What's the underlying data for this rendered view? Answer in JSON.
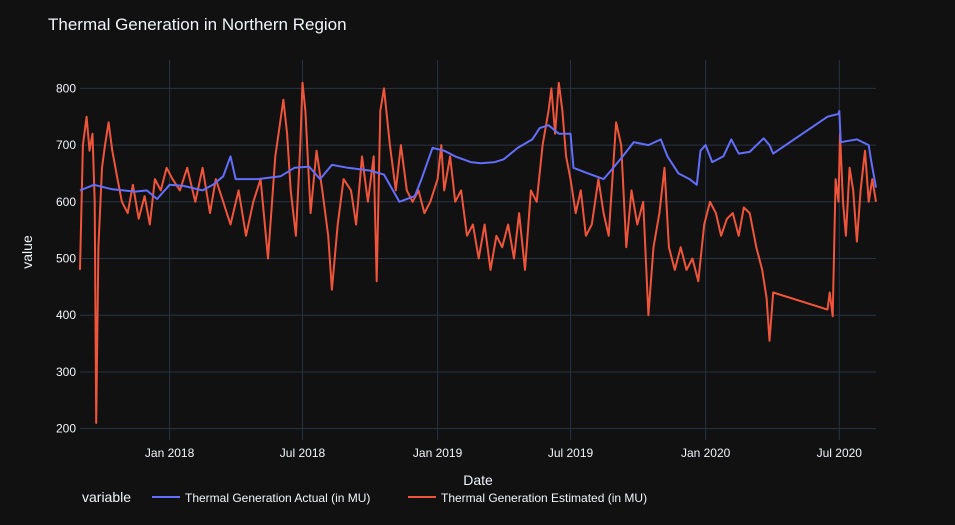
{
  "chart_data": {
    "type": "line",
    "title": "Thermal Generation in Northern Region",
    "xlabel": "Date",
    "ylabel": "value",
    "x_range": [
      "2017-09-01",
      "2020-08-20"
    ],
    "ylim": [
      180,
      850
    ],
    "x_ticks": [
      {
        "date": "2018-01-01",
        "label": "Jan 2018"
      },
      {
        "date": "2018-07-01",
        "label": "Jul 2018"
      },
      {
        "date": "2019-01-01",
        "label": "Jan 2019"
      },
      {
        "date": "2019-07-01",
        "label": "Jul 2019"
      },
      {
        "date": "2020-01-01",
        "label": "Jan 2020"
      },
      {
        "date": "2020-07-01",
        "label": "Jul 2020"
      }
    ],
    "y_ticks": [
      200,
      300,
      400,
      500,
      600,
      700,
      800
    ],
    "grid": true,
    "legend": {
      "title": "variable",
      "placement": "bottom"
    },
    "colors": {
      "actual": "#636efa",
      "estimated": "#ef553b",
      "background": "#111111",
      "grid": "#283442",
      "text": "#f2f5fa"
    },
    "series": [
      {
        "name": "Thermal Generation Actual (in MU)",
        "color": "#636efa",
        "points": [
          [
            "2017-09-01",
            620
          ],
          [
            "2017-09-20",
            630
          ],
          [
            "2017-10-15",
            622
          ],
          [
            "2017-11-15",
            618
          ],
          [
            "2017-12-01",
            620
          ],
          [
            "2017-12-15",
            605
          ],
          [
            "2018-01-01",
            630
          ],
          [
            "2018-01-20",
            628
          ],
          [
            "2018-02-15",
            620
          ],
          [
            "2018-03-01",
            630
          ],
          [
            "2018-03-15",
            645
          ],
          [
            "2018-03-25",
            680
          ],
          [
            "2018-04-01",
            640
          ],
          [
            "2018-05-01",
            640
          ],
          [
            "2018-06-01",
            645
          ],
          [
            "2018-06-20",
            660
          ],
          [
            "2018-07-10",
            662
          ],
          [
            "2018-07-25",
            640
          ],
          [
            "2018-08-10",
            665
          ],
          [
            "2018-09-01",
            660
          ],
          [
            "2018-10-01",
            655
          ],
          [
            "2018-10-20",
            648
          ],
          [
            "2018-11-10",
            600
          ],
          [
            "2018-12-01",
            610
          ],
          [
            "2018-12-10",
            640
          ],
          [
            "2018-12-25",
            695
          ],
          [
            "2019-01-10",
            690
          ],
          [
            "2019-01-25",
            680
          ],
          [
            "2019-02-15",
            670
          ],
          [
            "2019-03-01",
            668
          ],
          [
            "2019-03-20",
            670
          ],
          [
            "2019-04-01",
            675
          ],
          [
            "2019-04-20",
            695
          ],
          [
            "2019-05-10",
            710
          ],
          [
            "2019-05-20",
            730
          ],
          [
            "2019-06-01",
            735
          ],
          [
            "2019-06-15",
            720
          ],
          [
            "2019-07-01",
            720
          ],
          [
            "2019-07-05",
            660
          ],
          [
            "2019-07-25",
            650
          ],
          [
            "2019-08-15",
            640
          ],
          [
            "2019-08-25",
            655
          ],
          [
            "2019-09-10",
            680
          ],
          [
            "2019-09-25",
            705
          ],
          [
            "2019-10-15",
            700
          ],
          [
            "2019-11-01",
            710
          ],
          [
            "2019-11-10",
            680
          ],
          [
            "2019-11-25",
            650
          ],
          [
            "2019-12-10",
            640
          ],
          [
            "2019-12-20",
            630
          ],
          [
            "2019-12-25",
            690
          ],
          [
            "2020-01-01",
            700
          ],
          [
            "2020-01-10",
            670
          ],
          [
            "2020-01-25",
            680
          ],
          [
            "2020-02-05",
            710
          ],
          [
            "2020-02-15",
            685
          ],
          [
            "2020-03-01",
            688
          ],
          [
            "2020-03-20",
            712
          ],
          [
            "2020-03-28",
            700
          ],
          [
            "2020-04-02",
            685
          ],
          [
            "2020-06-15",
            750
          ],
          [
            "2020-06-30",
            755
          ],
          [
            "2020-07-01",
            760
          ],
          [
            "2020-07-03",
            705
          ],
          [
            "2020-07-25",
            710
          ],
          [
            "2020-08-10",
            700
          ],
          [
            "2020-08-13",
            675
          ],
          [
            "2020-08-20",
            625
          ]
        ]
      },
      {
        "name": "Thermal Generation Estimated (in MU)",
        "color": "#ef553b",
        "points": [
          [
            "2017-09-01",
            480
          ],
          [
            "2017-09-05",
            700
          ],
          [
            "2017-09-10",
            750
          ],
          [
            "2017-09-14",
            690
          ],
          [
            "2017-09-18",
            720
          ],
          [
            "2017-09-21",
            600
          ],
          [
            "2017-09-23",
            210
          ],
          [
            "2017-09-26",
            520
          ],
          [
            "2017-10-01",
            660
          ],
          [
            "2017-10-05",
            700
          ],
          [
            "2017-10-10",
            740
          ],
          [
            "2017-10-15",
            690
          ],
          [
            "2017-10-22",
            640
          ],
          [
            "2017-10-28",
            600
          ],
          [
            "2017-11-05",
            580
          ],
          [
            "2017-11-12",
            630
          ],
          [
            "2017-11-20",
            570
          ],
          [
            "2017-11-28",
            610
          ],
          [
            "2017-12-05",
            560
          ],
          [
            "2017-12-12",
            640
          ],
          [
            "2017-12-20",
            620
          ],
          [
            "2017-12-28",
            660
          ],
          [
            "2018-01-05",
            640
          ],
          [
            "2018-01-15",
            620
          ],
          [
            "2018-01-25",
            660
          ],
          [
            "2018-02-05",
            600
          ],
          [
            "2018-02-15",
            660
          ],
          [
            "2018-02-25",
            580
          ],
          [
            "2018-03-05",
            640
          ],
          [
            "2018-03-15",
            600
          ],
          [
            "2018-03-25",
            560
          ],
          [
            "2018-04-05",
            620
          ],
          [
            "2018-04-15",
            540
          ],
          [
            "2018-04-25",
            600
          ],
          [
            "2018-05-05",
            640
          ],
          [
            "2018-05-15",
            500
          ],
          [
            "2018-05-25",
            680
          ],
          [
            "2018-06-05",
            780
          ],
          [
            "2018-06-10",
            720
          ],
          [
            "2018-06-15",
            620
          ],
          [
            "2018-06-22",
            540
          ],
          [
            "2018-06-28",
            700
          ],
          [
            "2018-07-01",
            810
          ],
          [
            "2018-07-05",
            760
          ],
          [
            "2018-07-12",
            580
          ],
          [
            "2018-07-20",
            690
          ],
          [
            "2018-07-28",
            620
          ],
          [
            "2018-08-05",
            540
          ],
          [
            "2018-08-10",
            445
          ],
          [
            "2018-08-18",
            560
          ],
          [
            "2018-08-26",
            640
          ],
          [
            "2018-09-05",
            620
          ],
          [
            "2018-09-12",
            560
          ],
          [
            "2018-09-20",
            680
          ],
          [
            "2018-09-28",
            600
          ],
          [
            "2018-10-06",
            680
          ],
          [
            "2018-10-10",
            460
          ],
          [
            "2018-10-15",
            760
          ],
          [
            "2018-10-20",
            800
          ],
          [
            "2018-10-28",
            700
          ],
          [
            "2018-11-05",
            620
          ],
          [
            "2018-11-12",
            700
          ],
          [
            "2018-11-20",
            620
          ],
          [
            "2018-11-28",
            600
          ],
          [
            "2018-12-06",
            620
          ],
          [
            "2018-12-14",
            580
          ],
          [
            "2018-12-22",
            600
          ],
          [
            "2019-01-01",
            640
          ],
          [
            "2019-01-06",
            700
          ],
          [
            "2019-01-10",
            620
          ],
          [
            "2019-01-18",
            680
          ],
          [
            "2019-01-25",
            600
          ],
          [
            "2019-02-02",
            620
          ],
          [
            "2019-02-10",
            540
          ],
          [
            "2019-02-18",
            560
          ],
          [
            "2019-02-26",
            500
          ],
          [
            "2019-03-06",
            560
          ],
          [
            "2019-03-14",
            480
          ],
          [
            "2019-03-22",
            540
          ],
          [
            "2019-03-30",
            520
          ],
          [
            "2019-04-07",
            560
          ],
          [
            "2019-04-15",
            500
          ],
          [
            "2019-04-22",
            580
          ],
          [
            "2019-04-30",
            480
          ],
          [
            "2019-05-08",
            620
          ],
          [
            "2019-05-16",
            600
          ],
          [
            "2019-05-24",
            700
          ],
          [
            "2019-06-01",
            760
          ],
          [
            "2019-06-05",
            800
          ],
          [
            "2019-06-10",
            720
          ],
          [
            "2019-06-15",
            810
          ],
          [
            "2019-06-20",
            760
          ],
          [
            "2019-06-25",
            680
          ],
          [
            "2019-07-01",
            640
          ],
          [
            "2019-07-08",
            580
          ],
          [
            "2019-07-15",
            620
          ],
          [
            "2019-07-22",
            540
          ],
          [
            "2019-07-30",
            560
          ],
          [
            "2019-08-08",
            640
          ],
          [
            "2019-08-15",
            580
          ],
          [
            "2019-08-22",
            540
          ],
          [
            "2019-09-01",
            740
          ],
          [
            "2019-09-08",
            700
          ],
          [
            "2019-09-15",
            520
          ],
          [
            "2019-09-22",
            620
          ],
          [
            "2019-09-30",
            560
          ],
          [
            "2019-10-08",
            600
          ],
          [
            "2019-10-15",
            400
          ],
          [
            "2019-10-22",
            520
          ],
          [
            "2019-10-30",
            580
          ],
          [
            "2019-11-06",
            660
          ],
          [
            "2019-11-12",
            520
          ],
          [
            "2019-11-20",
            480
          ],
          [
            "2019-11-28",
            520
          ],
          [
            "2019-12-06",
            480
          ],
          [
            "2019-12-14",
            500
          ],
          [
            "2019-12-22",
            460
          ],
          [
            "2019-12-30",
            560
          ],
          [
            "2020-01-07",
            600
          ],
          [
            "2020-01-15",
            580
          ],
          [
            "2020-01-22",
            540
          ],
          [
            "2020-01-30",
            570
          ],
          [
            "2020-02-07",
            580
          ],
          [
            "2020-02-15",
            540
          ],
          [
            "2020-02-22",
            590
          ],
          [
            "2020-03-01",
            580
          ],
          [
            "2020-03-10",
            520
          ],
          [
            "2020-03-18",
            480
          ],
          [
            "2020-03-24",
            430
          ],
          [
            "2020-03-28",
            355
          ],
          [
            "2020-04-02",
            440
          ],
          [
            "2020-06-15",
            410
          ],
          [
            "2020-06-18",
            440
          ],
          [
            "2020-06-22",
            398
          ],
          [
            "2020-06-26",
            640
          ],
          [
            "2020-06-30",
            600
          ],
          [
            "2020-07-02",
            720
          ],
          [
            "2020-07-06",
            600
          ],
          [
            "2020-07-10",
            540
          ],
          [
            "2020-07-15",
            660
          ],
          [
            "2020-07-20",
            620
          ],
          [
            "2020-07-25",
            530
          ],
          [
            "2020-07-30",
            620
          ],
          [
            "2020-08-05",
            690
          ],
          [
            "2020-08-10",
            600
          ],
          [
            "2020-08-15",
            640
          ],
          [
            "2020-08-20",
            600
          ]
        ]
      }
    ]
  }
}
